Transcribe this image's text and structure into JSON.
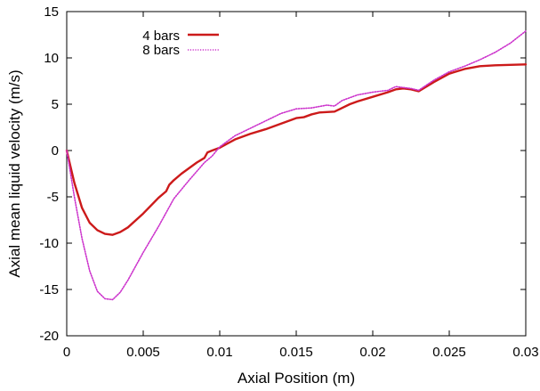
{
  "chart_data": {
    "type": "line",
    "xlabel": "Axial Position (m)",
    "ylabel": "Axial mean liquid velocity (m/s)",
    "xlim": [
      0,
      0.03
    ],
    "ylim": [
      -20,
      15
    ],
    "xticks": [
      0,
      0.005,
      0.01,
      0.015,
      0.02,
      0.025,
      0.03
    ],
    "xtick_labels": [
      "0",
      "0.005",
      "0.01",
      "0.015",
      "0.02",
      "0.025",
      "0.03"
    ],
    "yticks": [
      -20,
      -15,
      -10,
      -5,
      0,
      5,
      10,
      15
    ],
    "ytick_labels": [
      "-20",
      "-15",
      "-10",
      "-5",
      "0",
      "5",
      "10",
      "15"
    ],
    "grid": false,
    "legend_position": "top-left",
    "series": [
      {
        "name": "4 bars",
        "color": "#cc1a1a",
        "style": "solid",
        "x": [
          0,
          0.0005,
          0.001,
          0.0015,
          0.002,
          0.0025,
          0.003,
          0.0035,
          0.004,
          0.005,
          0.006,
          0.0065,
          0.0067,
          0.007,
          0.0075,
          0.008,
          0.0085,
          0.009,
          0.0092,
          0.0095,
          0.01,
          0.011,
          0.012,
          0.013,
          0.014,
          0.015,
          0.0155,
          0.016,
          0.0165,
          0.0175,
          0.018,
          0.0185,
          0.019,
          0.02,
          0.021,
          0.0215,
          0.022,
          0.0225,
          0.023,
          0.024,
          0.025,
          0.026,
          0.027,
          0.028,
          0.03
        ],
        "y": [
          0,
          -3.5,
          -6.2,
          -7.8,
          -8.6,
          -9.0,
          -9.1,
          -8.8,
          -8.3,
          -6.8,
          -5.1,
          -4.4,
          -3.7,
          -3.2,
          -2.5,
          -1.9,
          -1.3,
          -0.8,
          -0.2,
          0.0,
          0.3,
          1.2,
          1.8,
          2.3,
          2.9,
          3.5,
          3.6,
          3.9,
          4.1,
          4.2,
          4.6,
          5.0,
          5.3,
          5.8,
          6.3,
          6.6,
          6.7,
          6.6,
          6.4,
          7.4,
          8.3,
          8.8,
          9.1,
          9.2,
          9.3
        ]
      },
      {
        "name": "8 bars",
        "color": "#cc33cc",
        "style": "dotted",
        "x": [
          0,
          0.0005,
          0.001,
          0.0015,
          0.002,
          0.0025,
          0.003,
          0.0035,
          0.004,
          0.005,
          0.006,
          0.007,
          0.008,
          0.009,
          0.0095,
          0.01,
          0.011,
          0.012,
          0.013,
          0.014,
          0.015,
          0.016,
          0.017,
          0.0175,
          0.018,
          0.019,
          0.02,
          0.021,
          0.0215,
          0.022,
          0.0225,
          0.023,
          0.024,
          0.025,
          0.026,
          0.027,
          0.028,
          0.029,
          0.03
        ],
        "y": [
          0,
          -5.0,
          -9.5,
          -13.0,
          -15.2,
          -16.0,
          -16.1,
          -15.3,
          -14.0,
          -11.0,
          -8.2,
          -5.2,
          -3.2,
          -1.3,
          -0.6,
          0.4,
          1.6,
          2.4,
          3.2,
          4.0,
          4.5,
          4.6,
          4.9,
          4.8,
          5.4,
          6.0,
          6.3,
          6.5,
          6.9,
          6.8,
          6.7,
          6.5,
          7.6,
          8.5,
          9.1,
          9.8,
          10.6,
          11.6,
          12.9
        ]
      }
    ]
  }
}
